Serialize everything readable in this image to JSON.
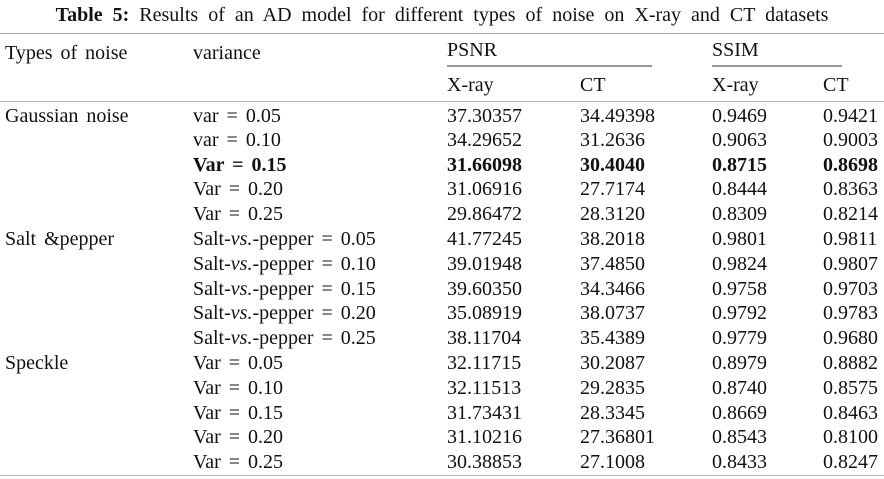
{
  "caption": {
    "label": "Table 5:",
    "text": " Results of an AD model for different types of noise on X-ray and CT datasets"
  },
  "colors": {
    "rule_full": "#b5b5b5",
    "rule_group": "#979797",
    "text": "#111111",
    "background": "#ffffff"
  },
  "header": {
    "noise": "Types of noise",
    "variance": "variance",
    "psnr": "PSNR",
    "ssim": "SSIM",
    "psnr_xray": "X-ray",
    "psnr_ct": "CT",
    "ssim_xray": "X-ray",
    "ssim_ct": "CT"
  },
  "rows": [
    {
      "group": "Gaussian noise",
      "var_pre": "var = 0.05",
      "var_it": "",
      "var_post": "",
      "psnr_xray": "37.30357",
      "psnr_ct": "34.49398",
      "ssim_xray": "0.9469",
      "ssim_ct": "0.9421"
    },
    {
      "group": "",
      "var_pre": "var = 0.10",
      "var_it": "",
      "var_post": "",
      "psnr_xray": "34.29652",
      "psnr_ct": "31.2636",
      "ssim_xray": "0.9063",
      "ssim_ct": "0.9003"
    },
    {
      "group": "",
      "var_pre": "Var = 0.15",
      "var_it": "",
      "var_post": "",
      "psnr_xray": "31.66098",
      "psnr_ct": "30.4040",
      "ssim_xray": "0.8715",
      "ssim_ct": "0.8698",
      "bold": true
    },
    {
      "group": "",
      "var_pre": "Var = 0.20",
      "var_it": "",
      "var_post": "",
      "psnr_xray": "31.06916",
      "psnr_ct": "27.7174",
      "ssim_xray": "0.8444",
      "ssim_ct": "0.8363"
    },
    {
      "group": "",
      "var_pre": "Var = 0.25",
      "var_it": "",
      "var_post": "",
      "psnr_xray": "29.86472",
      "psnr_ct": "28.3120",
      "ssim_xray": "0.8309",
      "ssim_ct": "0.8214"
    },
    {
      "group": "Salt &pepper",
      "var_pre": "Salt-",
      "var_it": "vs.",
      "var_post": "-pepper = 0.05",
      "psnr_xray": "41.77245",
      "psnr_ct": "38.2018",
      "ssim_xray": "0.9801",
      "ssim_ct": "0.9811"
    },
    {
      "group": "",
      "var_pre": "Salt-",
      "var_it": "vs.",
      "var_post": "-pepper = 0.10",
      "psnr_xray": "39.01948",
      "psnr_ct": "37.4850",
      "ssim_xray": "0.9824",
      "ssim_ct": "0.9807"
    },
    {
      "group": "",
      "var_pre": "Salt-",
      "var_it": "vs.",
      "var_post": "-pepper = 0.15",
      "psnr_xray": "39.60350",
      "psnr_ct": "34.3466",
      "ssim_xray": "0.9758",
      "ssim_ct": "0.9703"
    },
    {
      "group": "",
      "var_pre": "Salt-",
      "var_it": "vs.",
      "var_post": "-pepper = 0.20",
      "psnr_xray": "35.08919",
      "psnr_ct": "38.0737",
      "ssim_xray": "0.9792",
      "ssim_ct": "0.9783"
    },
    {
      "group": "",
      "var_pre": "Salt-",
      "var_it": "vs.",
      "var_post": "-pepper = 0.25",
      "psnr_xray": "38.11704",
      "psnr_ct": "35.4389",
      "ssim_xray": "0.9779",
      "ssim_ct": "0.9680"
    },
    {
      "group": "Speckle",
      "var_pre": "Var = 0.05",
      "var_it": "",
      "var_post": "",
      "psnr_xray": "32.11715",
      "psnr_ct": "30.2087",
      "ssim_xray": "0.8979",
      "ssim_ct": "0.8882"
    },
    {
      "group": "",
      "var_pre": "Var = 0.10",
      "var_it": "",
      "var_post": "",
      "psnr_xray": "32.11513",
      "psnr_ct": "29.2835",
      "ssim_xray": "0.8740",
      "ssim_ct": "0.8575"
    },
    {
      "group": "",
      "var_pre": "Var = 0.15",
      "var_it": "",
      "var_post": "",
      "psnr_xray": "31.73431",
      "psnr_ct": "28.3345",
      "ssim_xray": "0.8669",
      "ssim_ct": "0.8463"
    },
    {
      "group": "",
      "var_pre": "Var = 0.20",
      "var_it": "",
      "var_post": "",
      "psnr_xray": "31.10216",
      "psnr_ct": "27.36801",
      "ssim_xray": "0.8543",
      "ssim_ct": "0.8100"
    },
    {
      "group": "",
      "var_pre": "Var = 0.25",
      "var_it": "",
      "var_post": "",
      "psnr_xray": "30.38853",
      "psnr_ct": "27.1008",
      "ssim_xray": "0.8433",
      "ssim_ct": "0.8247"
    }
  ]
}
